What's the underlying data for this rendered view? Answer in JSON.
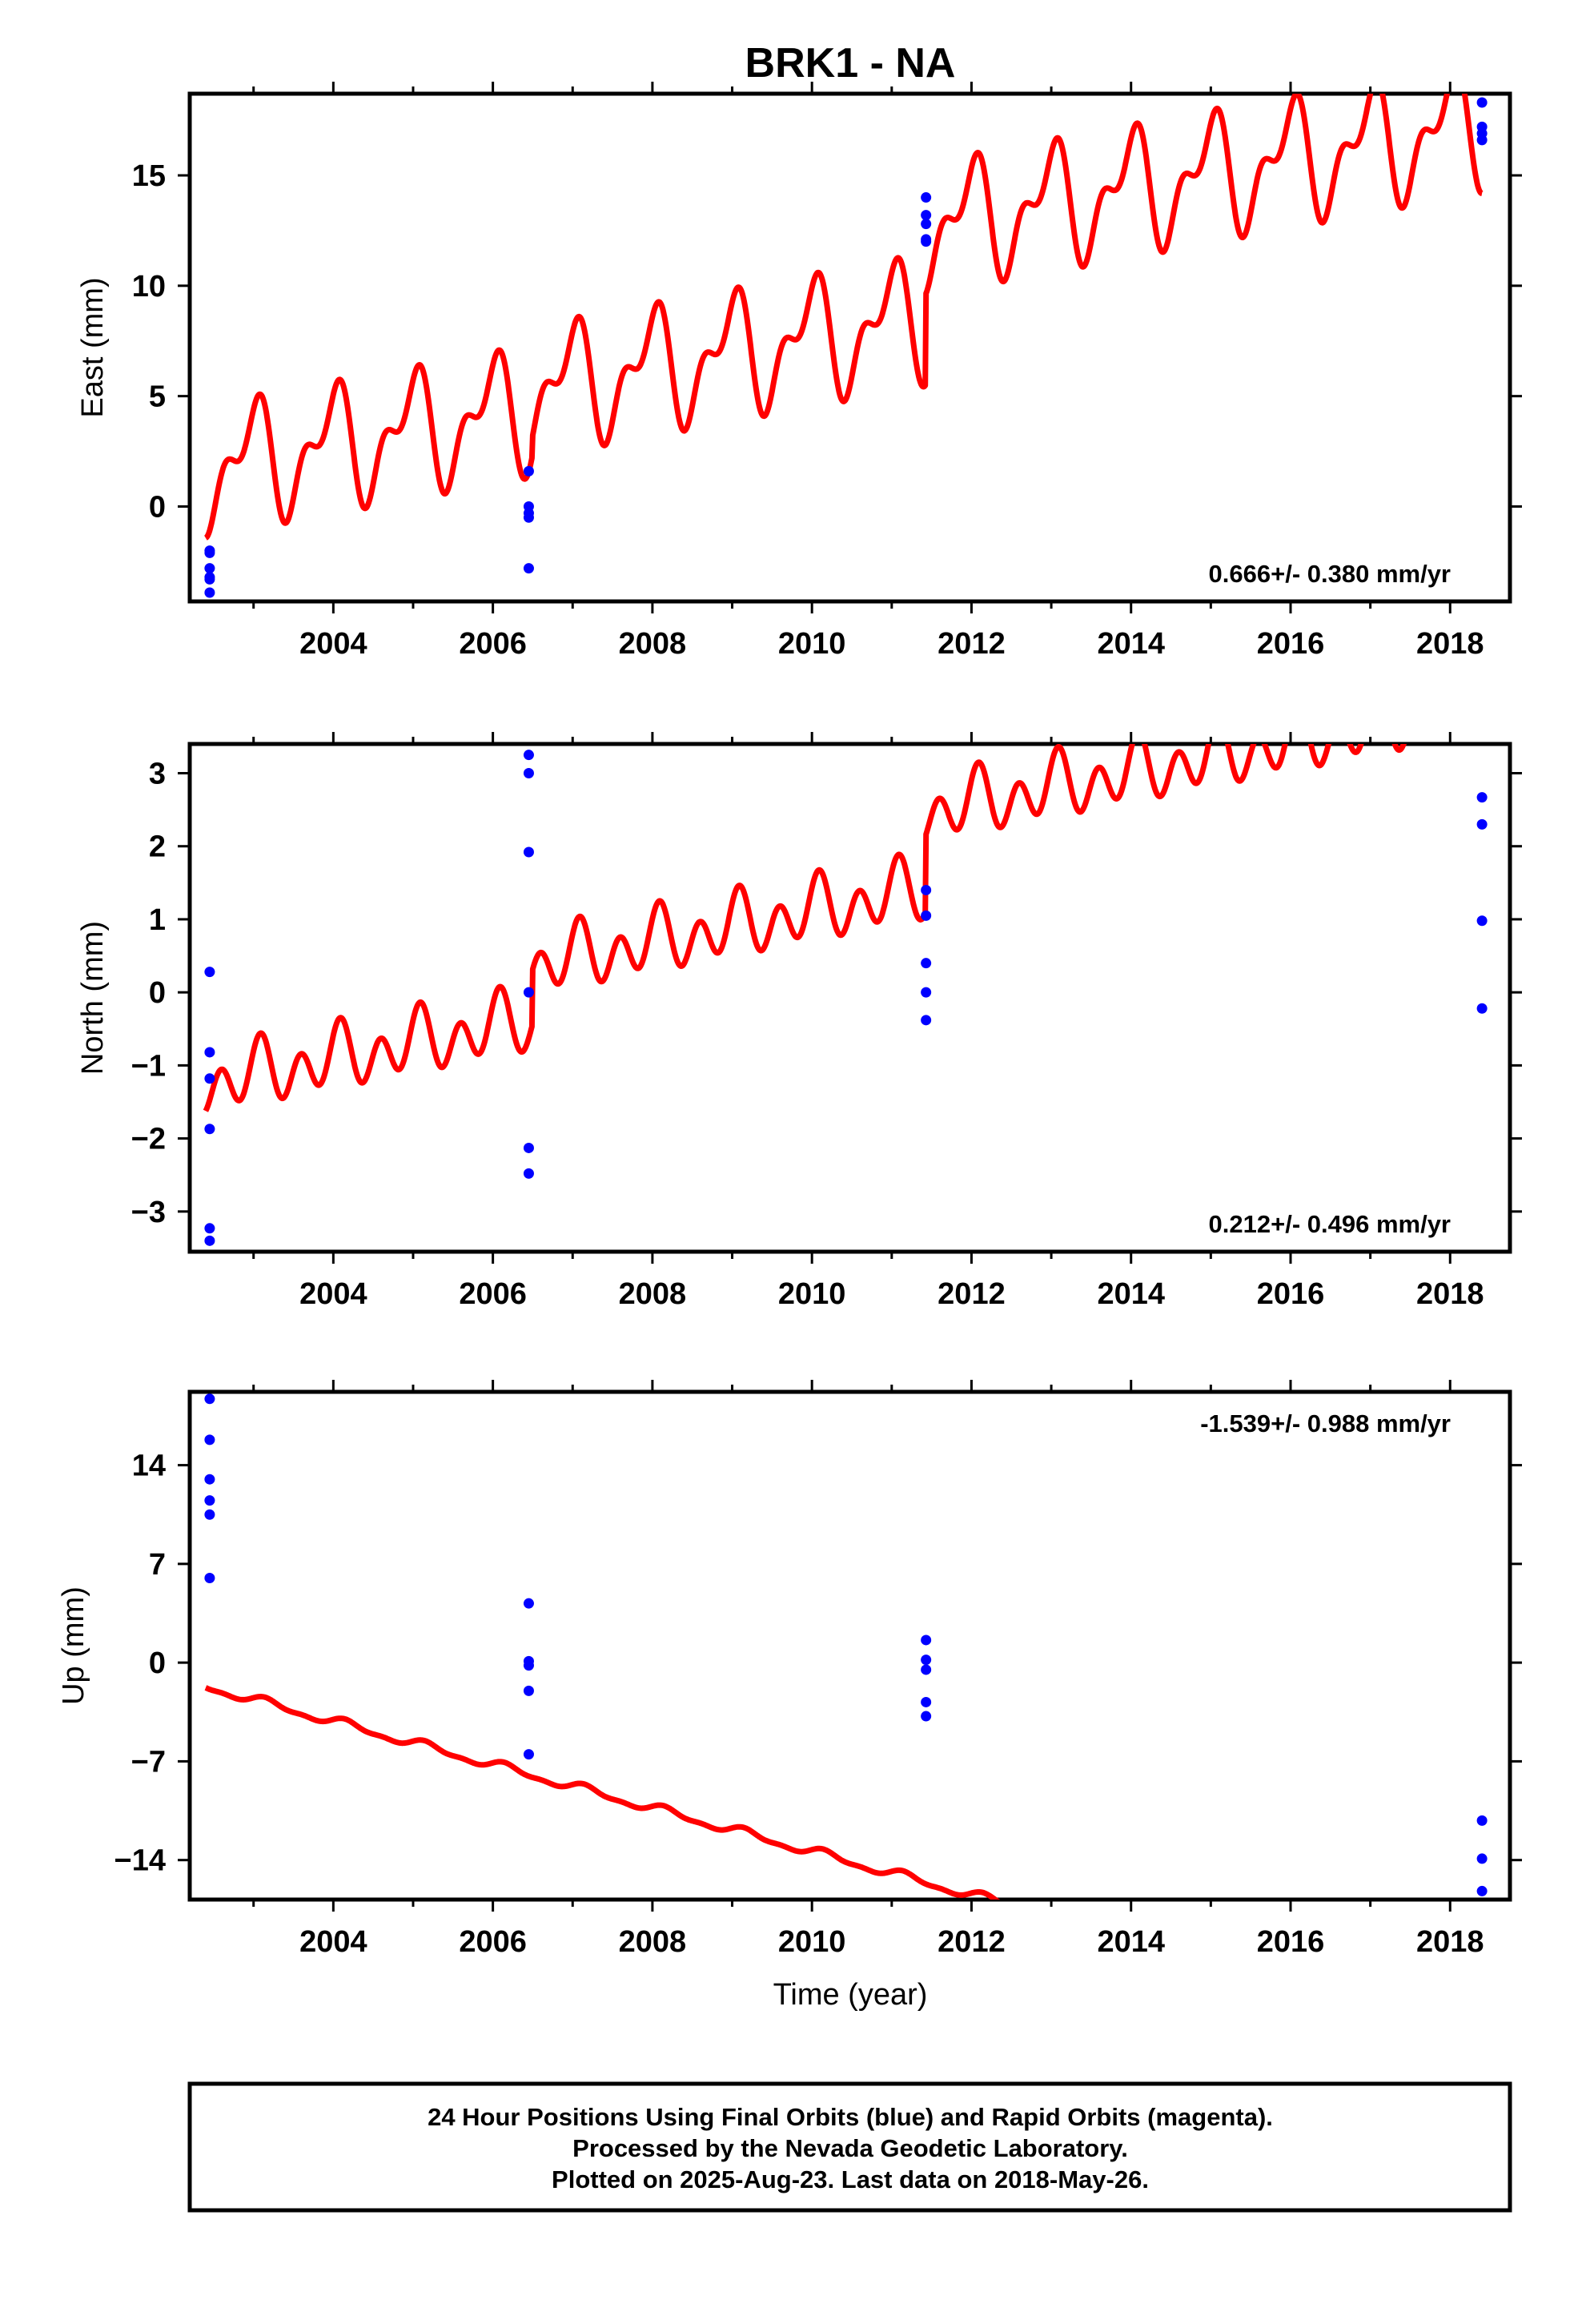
{
  "chart_data": {
    "title": "BRK1 - NA",
    "xlabel": "Time (year)",
    "x_ticks": [
      2004,
      2006,
      2008,
      2010,
      2012,
      2014,
      2016,
      2018
    ],
    "xlim": [
      2002.2,
      2018.75
    ],
    "panels": [
      {
        "type": "scatter",
        "ylabel": "East (mm)",
        "ylim": [
          -4.3,
          18.7
        ],
        "y_ticks": [
          0,
          5,
          10,
          15
        ],
        "y_tick_labels": [
          "0",
          "5",
          "10",
          "15"
        ],
        "rate_label": "0.666+/- 0.380 mm/yr",
        "rate_label_position": "bottom-right",
        "series": [
          {
            "color": "#0000ff",
            "x": [
              2002.45,
              2002.45,
              2002.45,
              2002.45,
              2002.45,
              2002.45,
              2006.45,
              2006.45,
              2006.45,
              2006.45,
              2006.45,
              2011.43,
              2011.43,
              2011.43,
              2011.43,
              2011.43,
              2018.4,
              2018.4,
              2018.4,
              2018.4
            ],
            "y": [
              -2.0,
              -2.1,
              -2.8,
              -3.2,
              -3.3,
              -3.9,
              1.6,
              0.0,
              -0.3,
              -0.5,
              -2.8,
              14.0,
              13.2,
              12.8,
              12.1,
              12.0,
              18.3,
              17.2,
              16.9,
              16.6
            ]
          }
        ],
        "model": {
          "color": "#ff0000",
          "start": 2002.4,
          "end": 2018.4,
          "offsets": [
            {
              "from": 2002.4,
              "to": 2006.5,
              "value": 1.7
            },
            {
              "from": 2006.5,
              "to": 2011.43,
              "value": 2.55
            },
            {
              "from": 2011.43,
              "to": 2018.4,
              "value": 6.65
            }
          ],
          "rate_mm_per_yr": 0.666,
          "annual_amplitude": 2.2,
          "annual_phase": 1.7,
          "semiannual_amplitude": 1.3,
          "semiannual_phase": 0.1
        }
      },
      {
        "type": "scatter",
        "ylabel": "North (mm)",
        "ylim": [
          -3.55,
          3.4
        ],
        "y_ticks": [
          -3,
          -2,
          -1,
          0,
          1,
          2,
          3
        ],
        "y_tick_labels": [
          "−3",
          "−2",
          "−1",
          "0",
          "1",
          "2",
          "3"
        ],
        "rate_label": "0.212+/- 0.496 mm/yr",
        "rate_label_position": "bottom-right",
        "series": [
          {
            "color": "#0000ff",
            "x": [
              2002.45,
              2002.45,
              2002.45,
              2002.45,
              2002.45,
              2002.45,
              2006.45,
              2006.45,
              2006.45,
              2006.45,
              2006.45,
              2006.45,
              2011.43,
              2011.43,
              2011.43,
              2011.43,
              2011.43,
              2018.4,
              2018.4,
              2018.4,
              2018.4
            ],
            "y": [
              0.28,
              -0.82,
              -1.18,
              -1.87,
              -3.23,
              -3.4,
              3.25,
              3.0,
              1.92,
              0.0,
              -2.13,
              -2.48,
              1.4,
              1.05,
              0.4,
              0.0,
              -0.38,
              2.67,
              2.3,
              0.98,
              -0.22
            ],
            "seen_values": null
          }
        ],
        "model": {
          "color": "#ff0000",
          "start": 2002.4,
          "end": 2018.4,
          "offsets": [
            {
              "from": 2002.4,
              "to": 2006.5,
              "value": -1.25
            },
            {
              "from": 2006.5,
              "to": 2011.43,
              "value": -0.5
            },
            {
              "from": 2011.43,
              "to": 2018.4,
              "value": 0.55
            }
          ],
          "rate_mm_per_yr": 0.212,
          "annual_amplitude": 0.2,
          "annual_phase": 1.2,
          "semiannual_amplitude": 0.35,
          "semiannual_phase": 0.4
        }
      },
      {
        "type": "scatter",
        "ylabel": "Up (mm)",
        "ylim": [
          -16.8,
          19.2
        ],
        "y_ticks": [
          -14,
          -7,
          0,
          7,
          14
        ],
        "y_tick_labels": [
          "−14",
          "−7",
          "0",
          "7",
          "14"
        ],
        "rate_label": "-1.539+/- 0.988 mm/yr",
        "rate_label_position": "top-right",
        "series": [
          {
            "color": "#0000ff",
            "x": [
              2002.45,
              2002.45,
              2002.45,
              2002.45,
              2002.45,
              2002.45,
              2006.45,
              2006.45,
              2006.45,
              2006.45,
              2006.45,
              2011.43,
              2011.43,
              2011.43,
              2011.43,
              2011.43,
              2018.4,
              2018.4,
              2018.4
            ],
            "y": [
              18.7,
              15.8,
              13.0,
              11.5,
              10.5,
              6.0,
              4.2,
              0.1,
              -0.2,
              -2.0,
              -6.5,
              1.6,
              0.2,
              -0.5,
              -2.8,
              -3.8,
              -11.2,
              -13.9,
              -16.2
            ]
          }
        ],
        "model": {
          "color": "#ff0000",
          "start": 2002.4,
          "end": 2018.4,
          "offsets": [
            {
              "from": 2002.4,
              "to": 2018.4,
              "value": -1.7
            }
          ],
          "rate_mm_per_yr": -1.539,
          "annual_amplitude": 0.28,
          "annual_phase": 0.5,
          "semiannual_amplitude": 0.12,
          "semiannual_phase": 0.0
        }
      }
    ]
  },
  "footer": {
    "line1": "24 Hour Positions Using Final Orbits (blue) and Rapid Orbits (magenta).",
    "line2": "Processed by the Nevada Geodetic Laboratory.",
    "line3": "Plotted on 2025-Aug-23. Last data on 2018-May-26."
  }
}
